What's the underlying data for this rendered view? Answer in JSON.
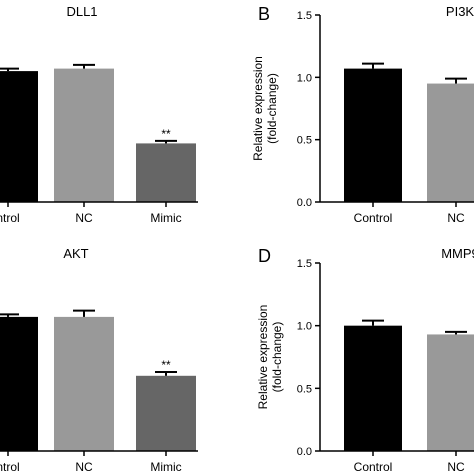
{
  "chart_data": [
    {
      "panel": "",
      "type": "bar",
      "title": "DLL1",
      "categories": [
        "ntrol",
        "NC",
        "Mimic"
      ],
      "values": [
        1.05,
        1.07,
        0.47
      ],
      "errors": [
        0.02,
        0.03,
        0.02
      ],
      "significance": [
        "",
        "",
        "**"
      ],
      "colors": [
        "#000000",
        "#999999",
        "#666666"
      ],
      "ylim": [
        0,
        1.5
      ],
      "yticks": [],
      "ylabel": "",
      "y_axis_visible": false
    },
    {
      "panel": "B",
      "type": "bar",
      "title": "PI3K",
      "categories": [
        "Control",
        "NC"
      ],
      "values": [
        1.07,
        0.95
      ],
      "errors": [
        0.04,
        0.04
      ],
      "significance": [
        "",
        ""
      ],
      "colors": [
        "#000000",
        "#999999"
      ],
      "ylim": [
        0,
        1.5
      ],
      "yticks": [
        "0.0",
        "0.5",
        "1.0",
        "1.5"
      ],
      "ylabel": "Relative expression",
      "ylabel2": "(fold-change)",
      "y_axis_visible": true
    },
    {
      "panel": "",
      "type": "bar",
      "title": "AKT",
      "categories": [
        "ntrol",
        "NC",
        "Mimic"
      ],
      "values": [
        1.07,
        1.07,
        0.6
      ],
      "errors": [
        0.02,
        0.05,
        0.03
      ],
      "significance": [
        "",
        "",
        "**"
      ],
      "colors": [
        "#000000",
        "#999999",
        "#666666"
      ],
      "ylim": [
        0,
        1.5
      ],
      "yticks": [],
      "ylabel": "",
      "y_axis_visible": false
    },
    {
      "panel": "D",
      "type": "bar",
      "title": "MMP9",
      "categories": [
        "Control",
        "NC"
      ],
      "values": [
        1.0,
        0.93
      ],
      "errors": [
        0.04,
        0.02
      ],
      "significance": [
        "",
        ""
      ],
      "colors": [
        "#000000",
        "#999999"
      ],
      "ylim": [
        0,
        1.5
      ],
      "yticks": [
        "0.0",
        "0.5",
        "1.0",
        "1.5"
      ],
      "ylabel": "Relative expression",
      "ylabel2": "(fold-change)",
      "y_axis_visible": true
    }
  ]
}
